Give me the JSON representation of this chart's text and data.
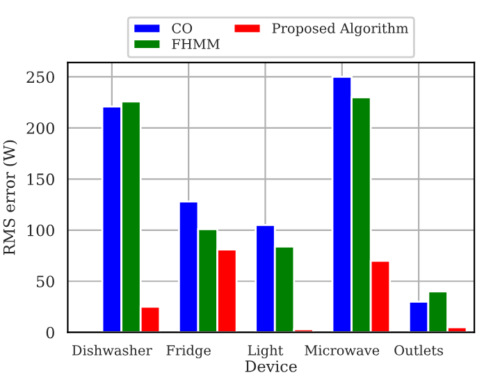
{
  "chart_data": {
    "type": "bar",
    "xlabel": "Device",
    "ylabel": "RMS error (W)",
    "categories": [
      "Dishwasher",
      "Fridge",
      "Light",
      "Microwave",
      "Outlets"
    ],
    "series": [
      {
        "name": "CO",
        "color": "#0000ff",
        "values": [
          221,
          128,
          105,
          250,
          30
        ]
      },
      {
        "name": "FHMM",
        "color": "#008000",
        "values": [
          226,
          101,
          84,
          230,
          40
        ]
      },
      {
        "name": "Proposed Algorithm",
        "color": "#ff0000",
        "values": [
          25,
          81,
          3,
          70,
          5
        ]
      }
    ],
    "ylim": [
      0,
      264
    ],
    "yticks": [
      0,
      50,
      100,
      150,
      200,
      250
    ],
    "grid": true,
    "legend": "top"
  }
}
